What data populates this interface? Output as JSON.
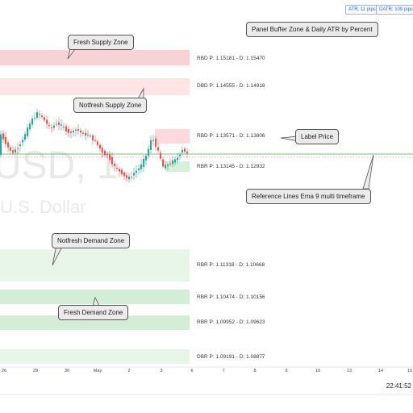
{
  "watermark": {
    "symbol_partial": "USD,  1",
    "description_partial": ".U.S. Dollar"
  },
  "top_panel": {
    "atr_label": "ATR: 11 pips",
    "datr_label": "DATR: 109 pips"
  },
  "zones": [
    {
      "label": "RBD P: 1.15181 - D: 1.15470",
      "color": "#f8d3d6"
    },
    {
      "label": "DBD P: 1.14555 - D: 1.14918",
      "color": "#fde5e7"
    },
    {
      "label": "RBD P: 1.13571 - D: 1.13806",
      "color": "#fde5e7"
    },
    {
      "label": "RBR P: 1.13145 - D: 1.12932",
      "color": "#d8efda"
    },
    {
      "label": "RBR P: 1.11318 - D: 1.10668",
      "color": "#e8f5e9"
    },
    {
      "label": "RBR P: 1.10474 - D: 1.10156",
      "color": "#d8efda"
    },
    {
      "label": "RBR P: 1.09952 - D: 1.09623",
      "color": "#d8efda"
    },
    {
      "label": "DBR P: 1.09191 - D: 1.08877",
      "color": "#e8f5e9"
    }
  ],
  "callouts": {
    "fresh_supply": "Fresh Supply Zone",
    "notfresh_supply": "Notfresh Supply Zone",
    "panel_buffer": "Panel Buffer Zone & Daily ATR by Percent",
    "label_price": "Label Price",
    "reference_lines": "Reference Lines Ema 9 multi timeframe",
    "notfresh_demand": "Notfresh Demand Zone",
    "fresh_demand": "Fresh Demand Zone"
  },
  "x_axis_ticks": [
    "26",
    "29",
    "30",
    "May",
    "2",
    "3",
    "6",
    "7",
    "8",
    "9",
    "10",
    "13",
    "14",
    "15"
  ],
  "clock": "22:41:52",
  "colors": {
    "bull": "#26a69a",
    "bear": "#ef5350",
    "ema": "#4caf50",
    "price_line": "#ef5350",
    "callout_bg": "#ebebeb",
    "accent": "#2962ff"
  }
}
